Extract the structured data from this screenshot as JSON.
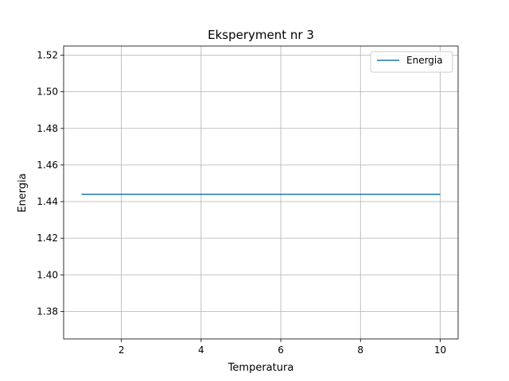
{
  "chart_data": {
    "type": "line",
    "title": "Eksperyment nr 3",
    "xlabel": "Temperatura",
    "ylabel": "Energia",
    "xlim": [
      0.55,
      10.45
    ],
    "ylim": [
      1.365,
      1.525
    ],
    "xticks": [
      2,
      4,
      6,
      8,
      10
    ],
    "yticks": [
      1.38,
      1.4,
      1.42,
      1.44,
      1.46,
      1.48,
      1.5,
      1.52
    ],
    "grid": true,
    "legend_position": "top-right",
    "series": [
      {
        "name": "Energia",
        "color": "#1f77b4",
        "x": [
          1,
          2,
          3,
          4,
          5,
          6,
          7,
          8,
          9,
          10
        ],
        "y": [
          1.444,
          1.444,
          1.444,
          1.444,
          1.444,
          1.444,
          1.444,
          1.444,
          1.444,
          1.444
        ]
      }
    ]
  }
}
